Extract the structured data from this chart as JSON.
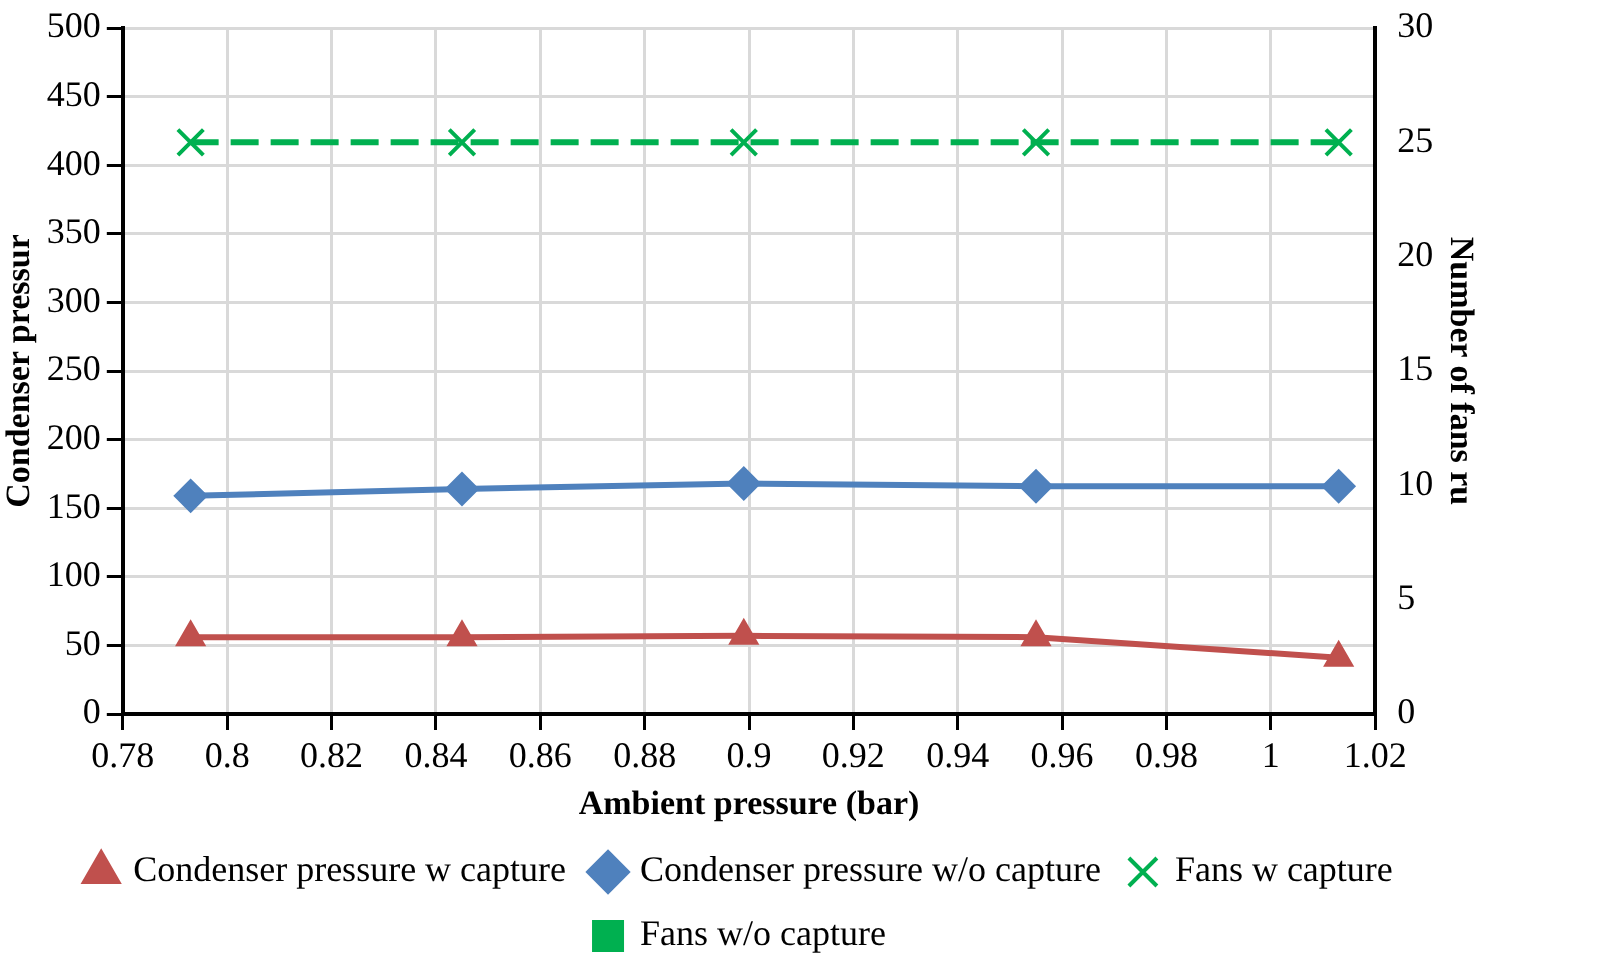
{
  "chart_data": {
    "type": "line",
    "xlabel": "Ambient pressure (bar)",
    "ylabel": "Condenser pressur",
    "y2label": "Number of fans ru",
    "x": [
      0.793,
      0.845,
      0.899,
      0.955,
      1.013
    ],
    "series": [
      {
        "name": "Condenser pressure w capture",
        "color": "#c0504d",
        "marker": "triangle",
        "line_style": "solid",
        "values": [
          56,
          56,
          57,
          56,
          41
        ]
      },
      {
        "name": "Condenser pressure w/o capture",
        "color": "#4f81bd",
        "marker": "diamond",
        "line_style": "solid",
        "values": [
          159,
          164,
          168,
          166,
          166
        ]
      },
      {
        "name": "Fans w capture",
        "color": "#00b050",
        "marker": "cross",
        "line_style": "dashed",
        "axis": "y2",
        "values": [
          25,
          25,
          25,
          25,
          25
        ]
      },
      {
        "name": "Fans w/o capture",
        "color": "#00b050",
        "marker": "square",
        "line_style": "solid",
        "axis": "y2",
        "values": [
          null,
          null,
          null,
          null,
          null
        ]
      }
    ],
    "xlim": [
      0.78,
      1.02
    ],
    "xticks": [
      0.78,
      0.8,
      0.82,
      0.84,
      0.86,
      0.88,
      0.9,
      0.92,
      0.94,
      0.96,
      0.98,
      1,
      1.02
    ],
    "ylim": [
      0,
      500
    ],
    "yticks": [
      0,
      50,
      100,
      150,
      200,
      250,
      300,
      350,
      400,
      450,
      500
    ],
    "y2lim": [
      0,
      30
    ],
    "y2ticks": [
      0,
      5,
      10,
      15,
      20,
      25,
      30
    ],
    "grid": true,
    "legend": "bottom"
  }
}
